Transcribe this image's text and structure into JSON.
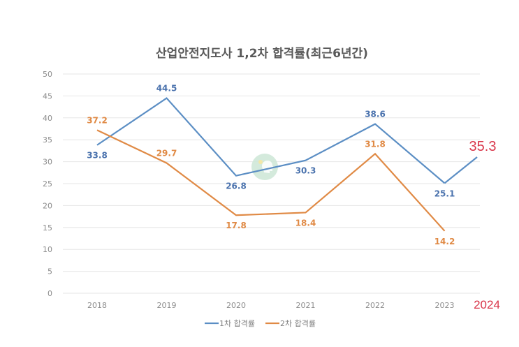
{
  "chart_data": {
    "type": "line",
    "title": "산업안전지도사 1,2차 합격률(최근6년간)",
    "xlabel": "",
    "ylabel": "",
    "ylim": [
      0,
      50
    ],
    "yticks": [
      0,
      5,
      10,
      15,
      20,
      25,
      30,
      35,
      40,
      45,
      50
    ],
    "grid": true,
    "legend_position": "bottom",
    "categories": [
      "2018",
      "2019",
      "2020",
      "2021",
      "2022",
      "2023"
    ],
    "series": [
      {
        "name": "1차 합격률",
        "color": "#5b8ec4",
        "label_color": "#4a72ad",
        "values": [
          33.8,
          44.5,
          26.8,
          30.3,
          38.6,
          25.1
        ],
        "label_positions": [
          "below",
          "above",
          "below",
          "below",
          "above",
          "below"
        ]
      },
      {
        "name": "2차 합격률",
        "color": "#e08a45",
        "label_color": "#e08a45",
        "values": [
          37.2,
          29.7,
          17.8,
          18.4,
          31.8,
          14.2
        ],
        "label_positions": [
          "above",
          "above",
          "below",
          "below",
          "above",
          "below"
        ]
      }
    ],
    "annotations": {
      "extra_category": "2024",
      "extra_series": "1차 합격률",
      "extra_value": 35.3,
      "extra_label": "35.3",
      "color": "#d9364a"
    }
  }
}
